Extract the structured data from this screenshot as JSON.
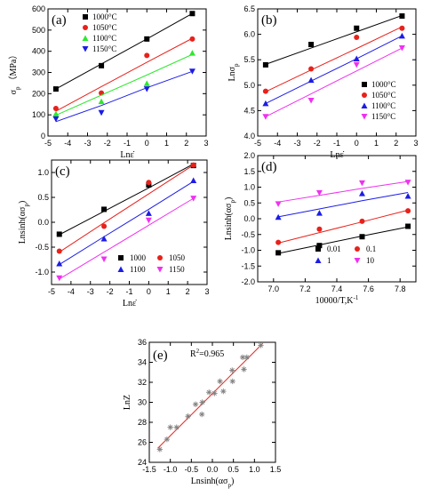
{
  "colors": {
    "black": "#000000",
    "red": "#e8211b",
    "green": "#2ee82e",
    "blue": "#1c1ce6",
    "magenta": "#f030f0",
    "fit_e": "#e8211b",
    "marker_e": "#808080"
  },
  "chart_data": [
    {
      "id": "a",
      "type": "scatter",
      "panel_label": "(a)",
      "xlabel": "Lnε̇",
      "ylabel": "σp (MPa)",
      "ylabel_main": "σ",
      "ylabel_sub": "p",
      "ylabel_unit": "（MPa）",
      "xlim": [
        -5,
        3
      ],
      "ylim": [
        0,
        600
      ],
      "xticks": [
        -5,
        -4,
        -3,
        -2,
        -1,
        0,
        1,
        2,
        3
      ],
      "yticks": [
        0,
        100,
        200,
        300,
        400,
        500,
        600
      ],
      "xticklabels": [
        "-5",
        "-4",
        "-3",
        "-2",
        "-1",
        "0",
        "1",
        "2",
        "3"
      ],
      "yticklabels": [
        "0",
        "100",
        "200",
        "300",
        "400",
        "500",
        "600"
      ],
      "x": [
        -4.6,
        -2.3,
        0,
        2.3
      ],
      "series": [
        {
          "name": "1000°C",
          "marker": "square",
          "color": "#000000",
          "values": [
            222,
            332,
            458,
            578
          ],
          "fit": [
            222,
            340,
            458,
            578
          ]
        },
        {
          "name": "1050°C",
          "marker": "circle",
          "color": "#e8211b",
          "values": [
            130,
            203,
            380,
            458
          ],
          "fit": [
            117,
            233,
            348,
            461
          ]
        },
        {
          "name": "1100°C",
          "marker": "triangle-up",
          "color": "#2ee82e",
          "values": [
            105,
            163,
            248,
            392
          ],
          "fit": [
            98,
            193,
            288,
            385
          ]
        },
        {
          "name": "1150°C",
          "marker": "triangle-down",
          "color": "#1c1ce6",
          "values": [
            80,
            110,
            222,
            305
          ],
          "fit": [
            68,
            144,
            228,
            305
          ]
        }
      ],
      "legend_position": "top-left"
    },
    {
      "id": "b",
      "type": "scatter",
      "panel_label": "(b)",
      "xlabel": "Lnε̇",
      "ylabel": "Lnσp",
      "ylabel_main": "Lnσ",
      "ylabel_sub": "p",
      "xlim": [
        -5,
        3
      ],
      "ylim": [
        4.0,
        6.5
      ],
      "xticks": [
        -5,
        -4,
        -3,
        -2,
        -1,
        0,
        1,
        2,
        3
      ],
      "yticks": [
        4.0,
        4.5,
        5.0,
        5.5,
        6.0,
        6.5
      ],
      "xticklabels": [
        "-5",
        "-4",
        "-3",
        "-2",
        "-1",
        "0",
        "1",
        "2",
        "3"
      ],
      "yticklabels": [
        "4.0",
        "4.5",
        "5.0",
        "5.5",
        "6.0",
        "6.5"
      ],
      "x": [
        -4.6,
        -2.3,
        0,
        2.3
      ],
      "series": [
        {
          "name": "1000°C",
          "marker": "square",
          "color": "#000000",
          "values": [
            5.4,
            5.8,
            6.12,
            6.36
          ],
          "fit": [
            5.41,
            5.73,
            6.05,
            6.37
          ]
        },
        {
          "name": "1050°C",
          "marker": "circle",
          "color": "#e8211b",
          "values": [
            4.88,
            5.32,
            5.94,
            6.12
          ],
          "fit": [
            4.87,
            5.3,
            5.72,
            6.15
          ]
        },
        {
          "name": "1100°C",
          "marker": "triangle-up",
          "color": "#1c1ce6",
          "values": [
            4.64,
            5.1,
            5.52,
            5.97
          ],
          "fit": [
            4.64,
            5.08,
            5.52,
            5.97
          ]
        },
        {
          "name": "1150°C",
          "marker": "triangle-down",
          "color": "#f030f0",
          "values": [
            4.38,
            4.7,
            5.4,
            5.73
          ],
          "fit": [
            4.38,
            4.83,
            5.28,
            5.73
          ]
        }
      ],
      "legend_position": "bottom-right"
    },
    {
      "id": "c",
      "type": "scatter",
      "panel_label": "(c)",
      "xlabel": "Lnε̇",
      "ylabel": "Lnsinh(ασp)",
      "ylabel_main": "Lnsinh(ασ",
      "ylabel_sub": "p",
      "ylabel_close": ")",
      "xlim": [
        -5,
        3
      ],
      "ylim": [
        -1.25,
        1.25
      ],
      "xticks": [
        -5,
        -4,
        -3,
        -2,
        -1,
        0,
        1,
        2,
        3
      ],
      "yticks": [
        -1.0,
        -0.5,
        0.0,
        0.5,
        1.0
      ],
      "xticklabels": [
        "-5",
        "-4",
        "-3",
        "-2",
        "-1",
        "0",
        "1",
        "2",
        "3"
      ],
      "yticklabels": [
        "-1.0",
        "-0.5",
        "0.0",
        "0.5",
        "1.0"
      ],
      "x": [
        -4.6,
        -2.3,
        0,
        2.3
      ],
      "series": [
        {
          "name": "1000",
          "marker": "square",
          "color": "#000000",
          "values": [
            -0.24,
            0.26,
            0.75,
            1.14
          ],
          "fit": [
            -0.25,
            0.22,
            0.69,
            1.17
          ]
        },
        {
          "name": "1050",
          "marker": "circle",
          "color": "#e8211b",
          "values": [
            -0.58,
            -0.08,
            0.8,
            1.15
          ],
          "fit": [
            -0.6,
            -0.01,
            0.57,
            1.15
          ]
        },
        {
          "name": "1100",
          "marker": "triangle-up",
          "color": "#1c1ce6",
          "values": [
            -0.83,
            -0.33,
            0.18,
            0.84
          ],
          "fit": [
            -0.85,
            -0.29,
            0.26,
            0.82
          ]
        },
        {
          "name": "1150",
          "marker": "triangle-down",
          "color": "#f030f0",
          "values": [
            -1.12,
            -0.74,
            0.04,
            0.48
          ],
          "fit": [
            -1.14,
            -0.6,
            -0.06,
            0.48
          ]
        }
      ],
      "legend_position": "bottom-right",
      "legend_columns": 2
    },
    {
      "id": "d",
      "type": "scatter",
      "panel_label": "(d)",
      "xlabel": "10000/T,K⁻¹",
      "xlabel_main": "10000/T,K",
      "xlabel_sup": "-1",
      "ylabel": "Lnsinh(ασp)",
      "ylabel_main": "Lnsinh(ασ",
      "ylabel_sub": "p",
      "ylabel_close": ")",
      "xlim": [
        6.9,
        7.9
      ],
      "ylim": [
        -2.0,
        2.0
      ],
      "xticks": [
        7.0,
        7.2,
        7.4,
        7.6,
        7.8
      ],
      "yticks": [
        -2.0,
        -1.5,
        -1.0,
        -0.5,
        0.0,
        0.5,
        1.0,
        1.5,
        2.0
      ],
      "xticklabels": [
        "7.0",
        "7.2",
        "7.4",
        "7.6",
        "7.8"
      ],
      "yticklabels": [
        "-2.0",
        "-1.5",
        "-1.0",
        "-0.5",
        "0.0",
        "0.5",
        "1.0",
        "1.5",
        "2.0"
      ],
      "x": [
        7.03,
        7.29,
        7.56,
        7.85
      ],
      "series": [
        {
          "name": "0.01",
          "marker": "square",
          "color": "#000000",
          "values": [
            -1.08,
            -0.85,
            -0.57,
            -0.24
          ],
          "fit": [
            -1.1,
            -0.83,
            -0.55,
            -0.26
          ]
        },
        {
          "name": "0.1",
          "marker": "circle",
          "color": "#e8211b",
          "values": [
            -0.75,
            -0.33,
            -0.08,
            0.25
          ],
          "fit": [
            -0.77,
            -0.44,
            -0.1,
            0.27
          ]
        },
        {
          "name": "1",
          "marker": "triangle-up",
          "color": "#1c1ce6",
          "values": [
            0.05,
            0.18,
            0.8,
            0.72
          ],
          "fit": [
            0.06,
            0.31,
            0.57,
            0.83
          ]
        },
        {
          "name": "10",
          "marker": "triangle-down",
          "color": "#f030f0",
          "values": [
            0.47,
            0.82,
            1.13,
            1.15
          ],
          "fit": [
            0.53,
            0.74,
            0.96,
            1.18
          ]
        }
      ],
      "legend_position": "bottom-right",
      "legend_columns": 2
    },
    {
      "id": "e",
      "type": "scatter",
      "panel_label": "(e)",
      "annotation": "R²=0.965",
      "annotation_main": "R",
      "annotation_sup": "2",
      "annotation_rest": "=0.965",
      "xlabel": "Lnsinh(ασp)",
      "xlabel_main": "Lnsinh(ασ",
      "xlabel_sub": "p",
      "xlabel_close": ")",
      "ylabel": "LnZ",
      "xlim": [
        -1.5,
        1.5
      ],
      "ylim": [
        24,
        36
      ],
      "xticks": [
        -1.5,
        -1.0,
        -0.5,
        0.0,
        0.5,
        1.0,
        1.5
      ],
      "yticks": [
        24,
        26,
        28,
        30,
        32,
        34,
        36
      ],
      "xticklabels": [
        "-1.5",
        "-1.0",
        "-0.5",
        "0.0",
        "0.5",
        "1.0",
        "1.5"
      ],
      "yticklabels": [
        "24",
        "26",
        "28",
        "30",
        "32",
        "34",
        "36"
      ],
      "points_x": [
        -1.25,
        -1.08,
        -1.0,
        -0.85,
        -0.58,
        -0.4,
        -0.25,
        -0.24,
        -0.08,
        0.05,
        0.18,
        0.26,
        0.47,
        0.48,
        0.72,
        0.75,
        0.82,
        1.15
      ],
      "points_y": [
        25.3,
        26.3,
        27.5,
        27.5,
        28.6,
        29.8,
        28.8,
        30.0,
        31.0,
        30.9,
        32.1,
        31.1,
        33.2,
        32.1,
        34.5,
        33.3,
        34.5,
        35.7
      ],
      "fit_line": {
        "x": [
          -1.3,
          1.2
        ],
        "y": [
          25.4,
          35.9
        ]
      },
      "marker": "asterisk",
      "marker_color": "#808080",
      "line_color": "#e8211b"
    }
  ]
}
